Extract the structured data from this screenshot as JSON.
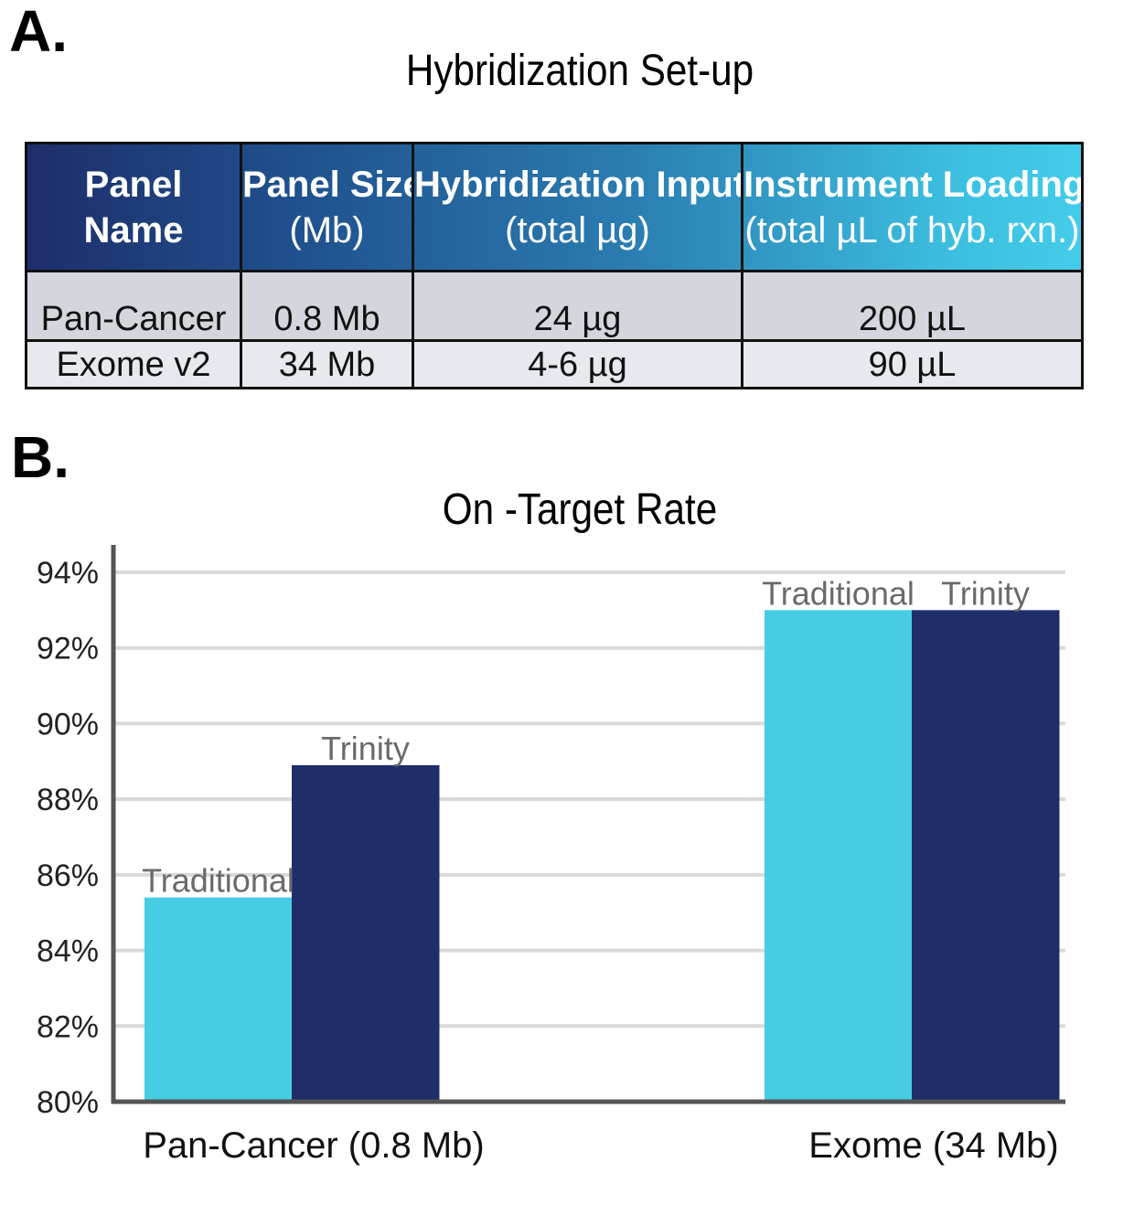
{
  "panel_a": {
    "letter": "A.",
    "title": "Hybridization Set-up",
    "headers": [
      {
        "bold": "Panel",
        "sub": "Name"
      },
      {
        "bold": "Panel Size",
        "sub": "(Mb)"
      },
      {
        "bold": "Hybridization Input",
        "sub": "(total µg)"
      },
      {
        "bold": "Instrument Loading",
        "sub": "(total µL of hyb. rxn.)"
      }
    ],
    "rows": [
      [
        "Pan-Cancer",
        "0.8 Mb",
        "24 µg",
        "200 µL"
      ],
      [
        "Exome v2",
        "34 Mb",
        "4-6 µg",
        "90 µL"
      ]
    ],
    "colors": {
      "header_start": "#1e2a66",
      "header_end": "#46d1ec",
      "row_odd": "#d3d6dc",
      "row_even": "#e6e9ed"
    }
  },
  "panel_b": {
    "letter": "B."
  },
  "chart_data": {
    "type": "bar",
    "title": "On -Target Rate",
    "xlabel": "",
    "ylabel": "",
    "categories": [
      "Pan-Cancer (0.8 Mb)",
      "Exome (34 Mb)"
    ],
    "series": [
      {
        "name": "Traditional",
        "values": [
          85.4,
          93.0
        ],
        "color": "#46cde4"
      },
      {
        "name": "Trinity",
        "values": [
          88.9,
          93.0
        ],
        "color": "#1f2d68"
      }
    ],
    "ylim": [
      80,
      94
    ],
    "yticks": [
      80,
      82,
      84,
      86,
      88,
      90,
      92,
      94
    ],
    "ytick_labels": [
      "80%",
      "82%",
      "84%",
      "86%",
      "88%",
      "90%",
      "92%",
      "94%"
    ],
    "grid": true,
    "legend": "none (series names shown as bar labels)"
  }
}
